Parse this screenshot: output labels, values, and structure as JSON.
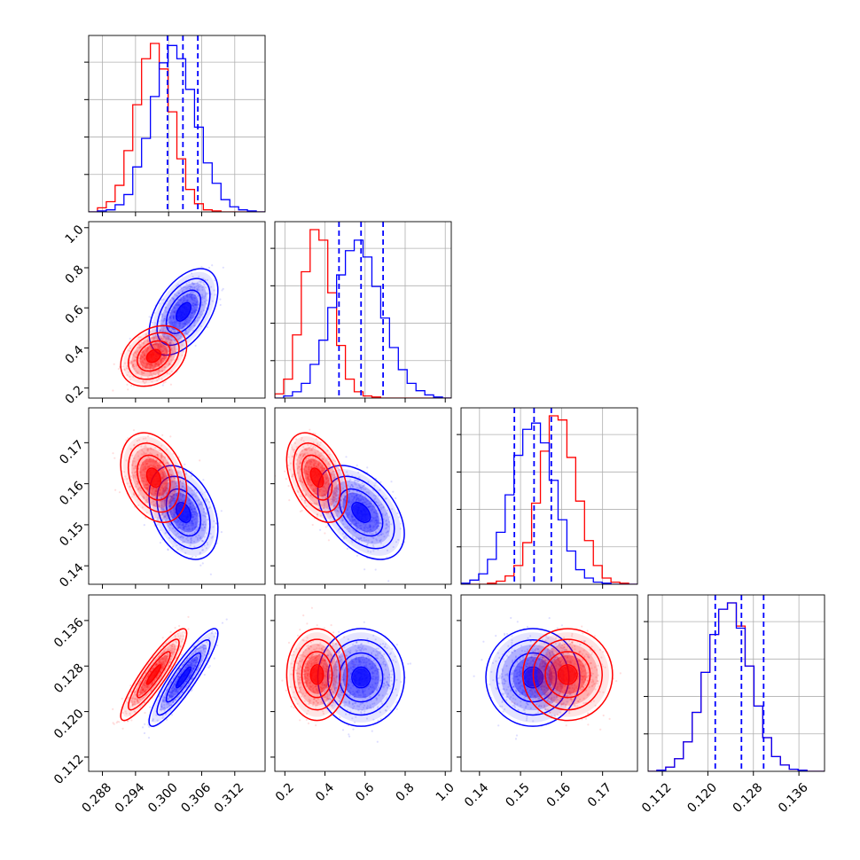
{
  "chart_data": {
    "type": "corner",
    "grid": true,
    "colors": {
      "series_a": "#0000ff",
      "series_b": "#ff0000",
      "grid": "#b0b0b0",
      "frame": "#000000"
    },
    "params": [
      {
        "key": "p1",
        "range": [
          0.2855,
          0.3175
        ],
        "ticks": [
          0.288,
          0.294,
          0.3,
          0.306,
          0.312
        ],
        "tick_labels": [
          "0.288",
          "0.294",
          "0.300",
          "0.306",
          "0.312"
        ]
      },
      {
        "key": "p2",
        "range": [
          0.15,
          1.03
        ],
        "ticks": [
          0.2,
          0.4,
          0.6,
          0.8,
          1.0
        ],
        "tick_labels": [
          "0.2",
          "0.4",
          "0.6",
          "0.8",
          "1.0"
        ]
      },
      {
        "key": "p3",
        "range": [
          0.1355,
          0.1785
        ],
        "ticks": [
          0.14,
          0.15,
          0.16,
          0.17
        ],
        "tick_labels": [
          "0.14",
          "0.15",
          "0.16",
          "0.17"
        ]
      },
      {
        "key": "p4",
        "range": [
          0.1095,
          0.1405
        ],
        "ticks": [
          0.112,
          0.12,
          0.128,
          0.136
        ],
        "tick_labels": [
          "0.112",
          "0.120",
          "0.128",
          "0.136"
        ]
      }
    ],
    "series": [
      {
        "color": "#0000ff",
        "mean": [
          0.3027,
          0.58,
          0.153,
          0.126
        ],
        "std": [
          0.0024,
          0.083,
          0.0044,
          0.0033
        ],
        "corr": [
          [
            1,
            0.5,
            -0.35,
            0.9
          ],
          [
            0.5,
            1,
            -0.45,
            0.0
          ],
          [
            -0.35,
            -0.45,
            1,
            0.0
          ],
          [
            0.9,
            0.0,
            0.0,
            1
          ]
        ],
        "quantile_lines": [
          [
            0.2998,
            0.3026,
            0.3053
          ],
          [
            0.47,
            0.58,
            0.69
          ],
          [
            0.1485,
            0.1533,
            0.1575
          ],
          [
            0.1213,
            0.1259,
            0.1298
          ]
        ],
        "hist": [
          {
            "edges": [
              0.2855,
              0.3175
            ],
            "counts": [
              0,
              1,
              2,
              7,
              17,
              44,
              72,
              113,
              146,
              163,
              150,
              120,
              83,
              48,
              28,
              12,
              5,
              2,
              1,
              0
            ]
          },
          {
            "edges": [
              0.15,
              1.03
            ],
            "counts": [
              0,
              2,
              6,
              14,
              32,
              55,
              86,
              117,
              140,
              150,
              134,
              106,
              76,
              48,
              27,
              14,
              7,
              3,
              1,
              0
            ]
          },
          {
            "edges": [
              0.1355,
              0.1785
            ],
            "counts": [
              1,
              4,
              10,
              24,
              50,
              86,
              124,
              149,
              155,
              136,
              100,
              62,
              32,
              14,
              6,
              2,
              1,
              0,
              0,
              0
            ]
          },
          {
            "edges": [
              0.1095,
              0.1405
            ],
            "counts": [
              0,
              1,
              4,
              12,
              28,
              56,
              94,
              130,
              154,
              160,
              136,
              100,
              62,
              32,
              14,
              6,
              2,
              1,
              0,
              0
            ]
          }
        ]
      },
      {
        "color": "#ff0000",
        "mean": [
          0.2973,
          0.36,
          0.1615,
          0.1265
        ],
        "std": [
          0.0023,
          0.058,
          0.0042,
          0.0031
        ],
        "corr": [
          [
            1,
            0.3,
            -0.3,
            0.9
          ],
          [
            0.3,
            1,
            -0.4,
            0.0
          ],
          [
            -0.3,
            -0.4,
            1,
            0.0
          ],
          [
            0.9,
            0.0,
            0.0,
            1
          ]
        ],
        "quantile_lines": null,
        "hist": [
          {
            "edges": [
              0.2855,
              0.3175
            ],
            "counts": [
              0,
              4,
              10,
              26,
              60,
              105,
              150,
              165,
              140,
              98,
              52,
              22,
              8,
              2,
              1,
              0,
              0,
              0,
              0,
              0
            ]
          },
          {
            "edges": [
              0.15,
              1.03
            ],
            "counts": [
              4,
              18,
              60,
              120,
              160,
              150,
              100,
              50,
              18,
              6,
              2,
              1,
              0,
              0,
              0,
              0,
              0,
              0,
              0,
              0
            ]
          },
          {
            "edges": [
              0.1355,
              0.1785
            ],
            "counts": [
              0,
              0,
              0,
              1,
              3,
              8,
              18,
              40,
              78,
              128,
              162,
              158,
              122,
              80,
              42,
              18,
              6,
              2,
              1,
              0
            ]
          },
          {
            "edges": [
              0.1095,
              0.1405
            ],
            "counts": [
              0,
              1,
              4,
              12,
              28,
              56,
              94,
              130,
              154,
              160,
              138,
              100,
              62,
              32,
              14,
              6,
              2,
              1,
              0,
              0
            ]
          }
        ]
      }
    ]
  }
}
